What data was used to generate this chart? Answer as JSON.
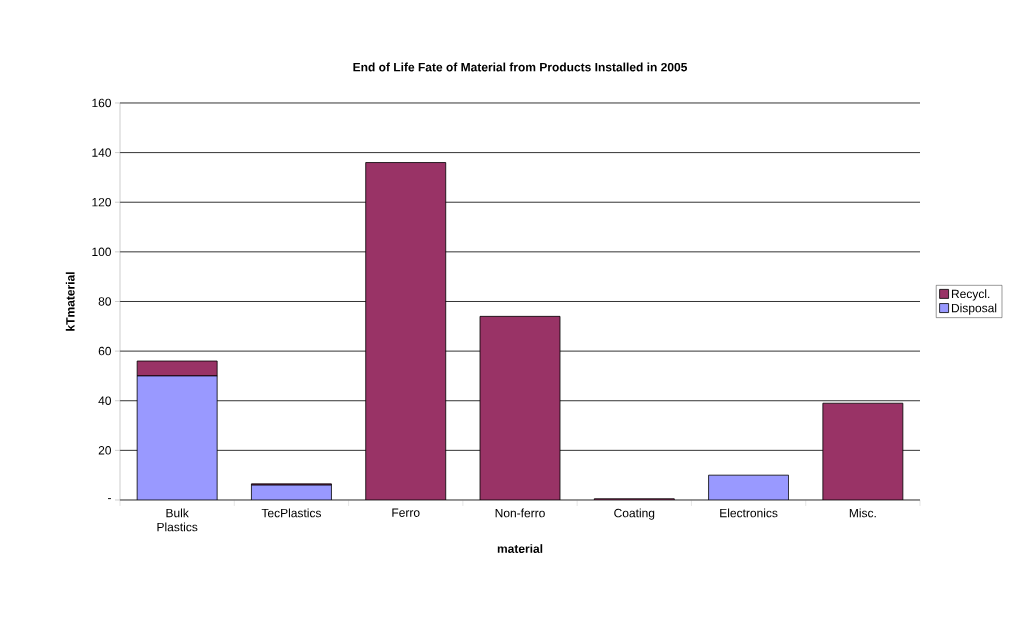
{
  "chart_data": {
    "type": "bar",
    "title": "End of Life Fate of Material from Products Installed in 2005",
    "xlabel": "material",
    "ylabel": "kTmaterial",
    "categories": [
      "Bulk Plastics",
      "TecPlastics",
      "Ferro",
      "Non-ferro",
      "Coating",
      "Electronics",
      "Misc."
    ],
    "stacked": true,
    "series": [
      {
        "name": "Disposal",
        "color": "#9999ff",
        "values": [
          50,
          6,
          0,
          0,
          0,
          10,
          0
        ]
      },
      {
        "name": "Recycl.",
        "color": "#993366",
        "values": [
          6,
          0.5,
          136,
          74,
          0.5,
          0,
          39
        ]
      }
    ],
    "ylim": [
      0,
      160
    ],
    "yticks": [
      {
        "value": 0,
        "label": "-"
      },
      20,
      40,
      60,
      80,
      100,
      120,
      140,
      160
    ],
    "grid": "y",
    "legend": "right"
  }
}
